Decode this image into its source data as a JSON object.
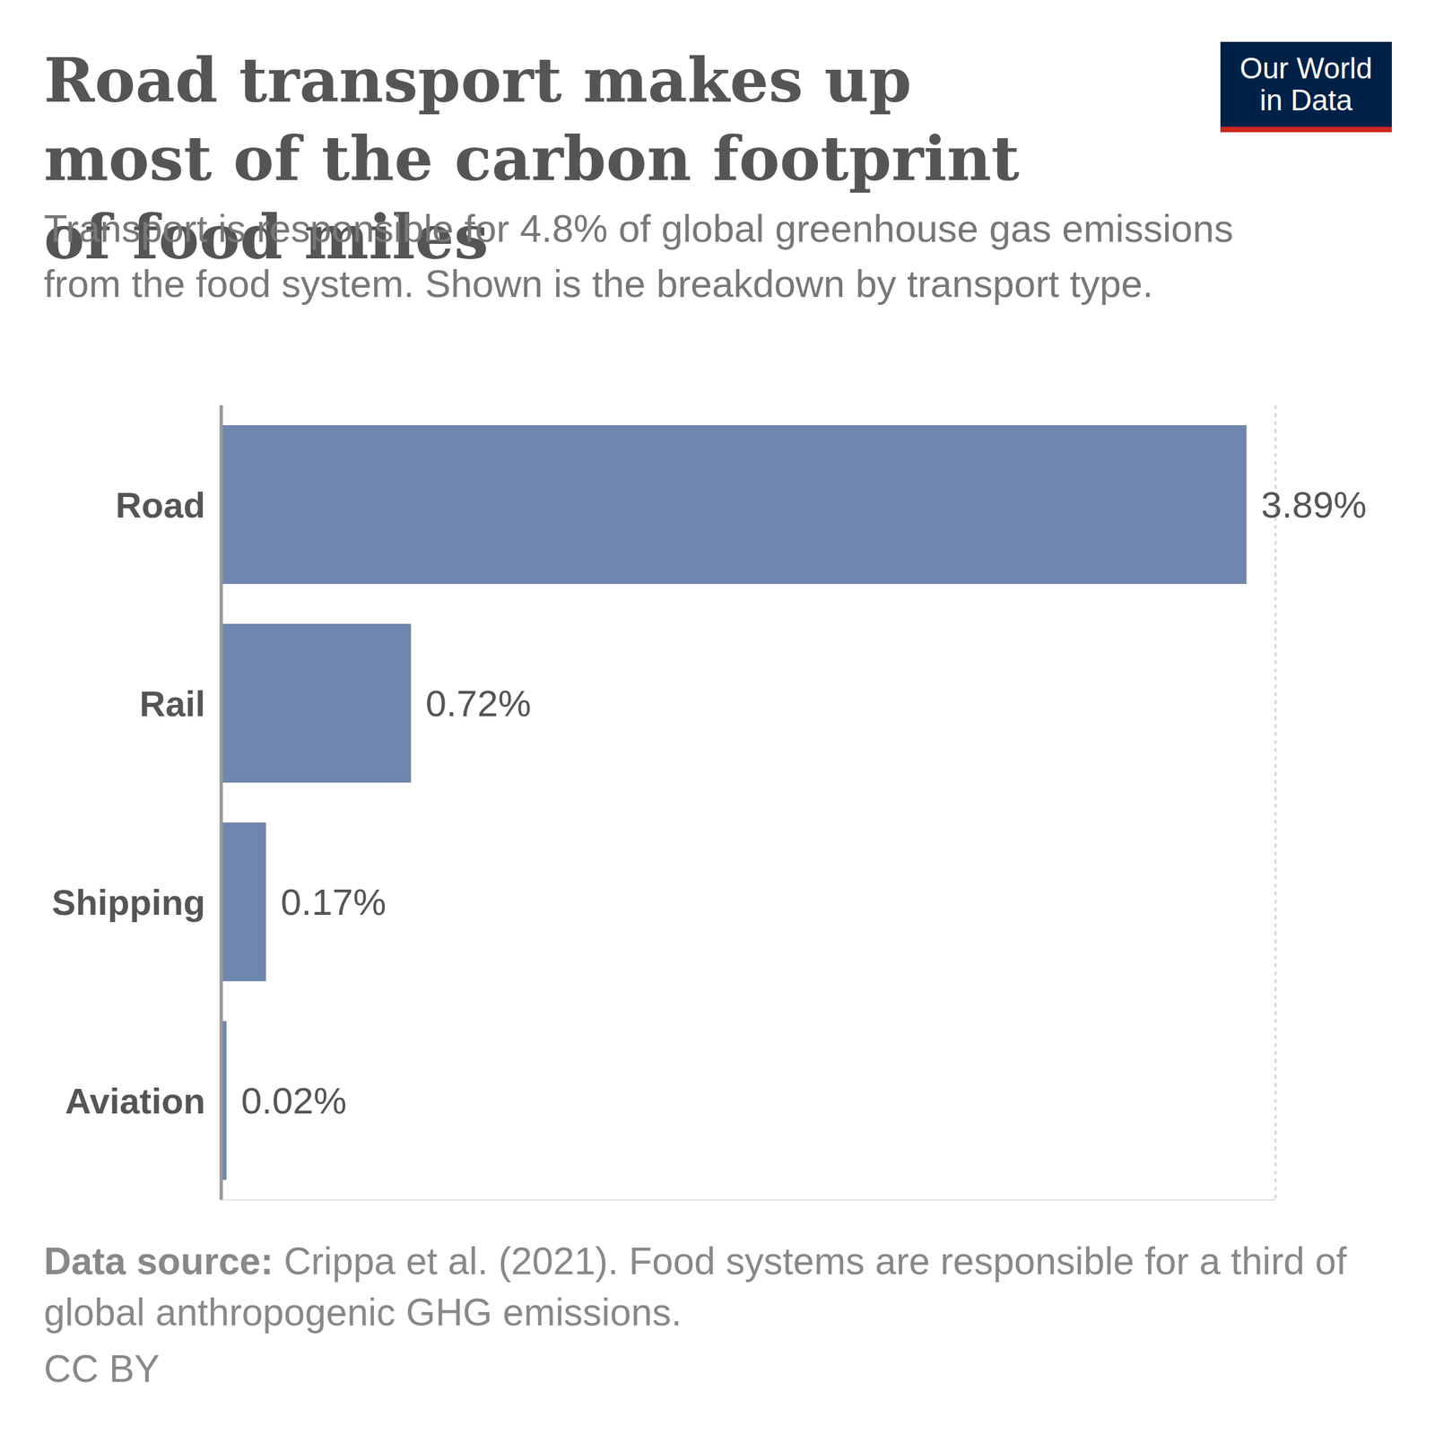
{
  "chart_data": {
    "type": "bar",
    "title": "Road transport makes up most of the carbon footprint of food miles",
    "subtitle": "Transport is responsible for 4.8% of global greenhouse gas emissions from the food system. Shown is the breakdown by transport type.",
    "categories": [
      "Road",
      "Rail",
      "Shipping",
      "Aviation"
    ],
    "values": [
      3.89,
      0.72,
      0.17,
      0.02
    ],
    "value_labels": [
      "3.89%",
      "0.72%",
      "0.17%",
      "0.02%"
    ],
    "color": "#6f87af",
    "orientation": "horizontal",
    "data_labels": true,
    "xlim": [
      0,
      4
    ],
    "xticks": [
      0,
      0.5,
      1,
      1.5,
      2,
      2.5,
      3,
      3.5
    ],
    "grid": true,
    "tick_labels": "y",
    "source_label": "Data source:",
    "source": "Crippa et al. (2021). Food systems are responsible for a third of global anthropogenic GHG emissions.",
    "license": "CC BY",
    "logo": [
      "Our World",
      "in Data"
    ]
  }
}
